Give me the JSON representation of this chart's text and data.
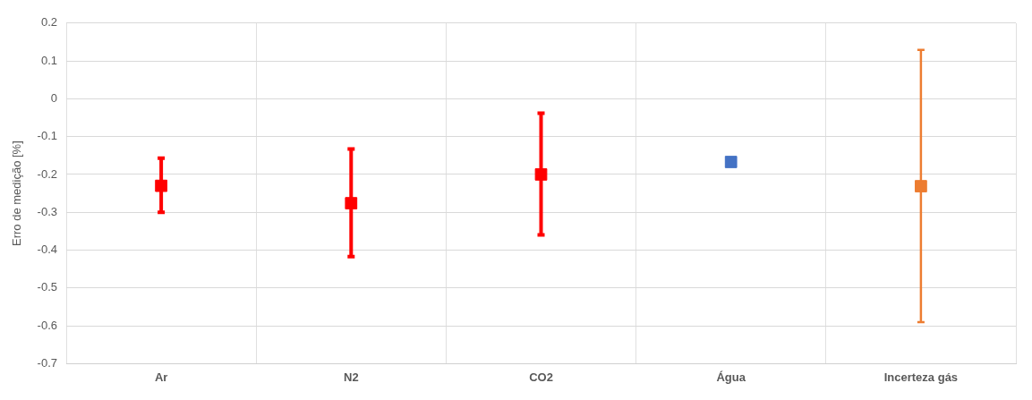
{
  "chart_data": {
    "type": "scatter",
    "ylabel": "Erro de medição [%]",
    "categories": [
      "Ar",
      "N2",
      "CO2",
      "Água",
      "Incerteza gás"
    ],
    "values": [
      -0.23,
      -0.276,
      -0.2,
      -0.167,
      -0.231
    ],
    "errors": [
      [
        -0.3,
        -0.157
      ],
      [
        -0.417,
        -0.133
      ],
      [
        -0.36,
        -0.038
      ],
      null,
      [
        -0.59,
        0.129
      ]
    ],
    "colors": [
      "#ff0000",
      "#ff0000",
      "#ff0000",
      "#4472c4",
      "#ed7d31"
    ],
    "ylim": [
      -0.7,
      0.2
    ],
    "yticks": [
      -0.7,
      -0.6,
      -0.5,
      -0.4,
      -0.3,
      -0.2,
      -0.1,
      0,
      0.1,
      0.2
    ],
    "grid": true,
    "marker": "square",
    "legend": false
  }
}
